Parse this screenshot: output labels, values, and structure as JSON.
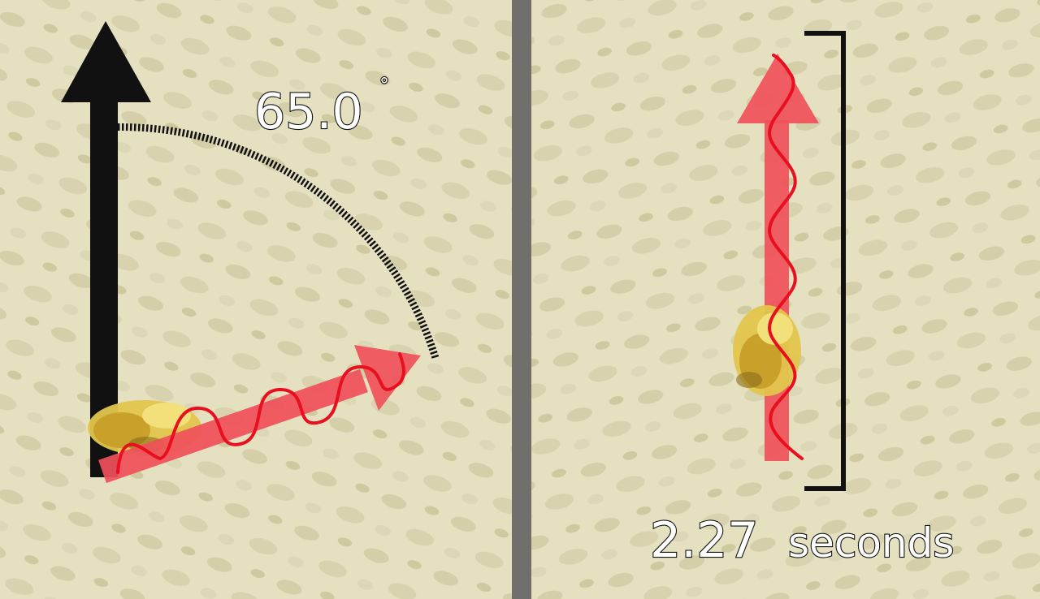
{
  "left_panel": {
    "angle_value": "65.0",
    "angle_unit": "°",
    "colors": {
      "gravity_arrow": "#111111",
      "direction_arrow": "#f0505a",
      "wiggle_path": "#e8101e",
      "angle_arc": "#111111"
    }
  },
  "right_panel": {
    "duration_value": "2.27",
    "duration_unit": "seconds",
    "colors": {
      "direction_arrow": "#f0505a",
      "wiggle_path": "#e8101e",
      "duration_bracket": "#111111"
    }
  },
  "divider": {
    "color": "#6f6f6c"
  },
  "background": {
    "description_icon": "honeycomb-bees-texture",
    "color": "#e4e0c0"
  }
}
